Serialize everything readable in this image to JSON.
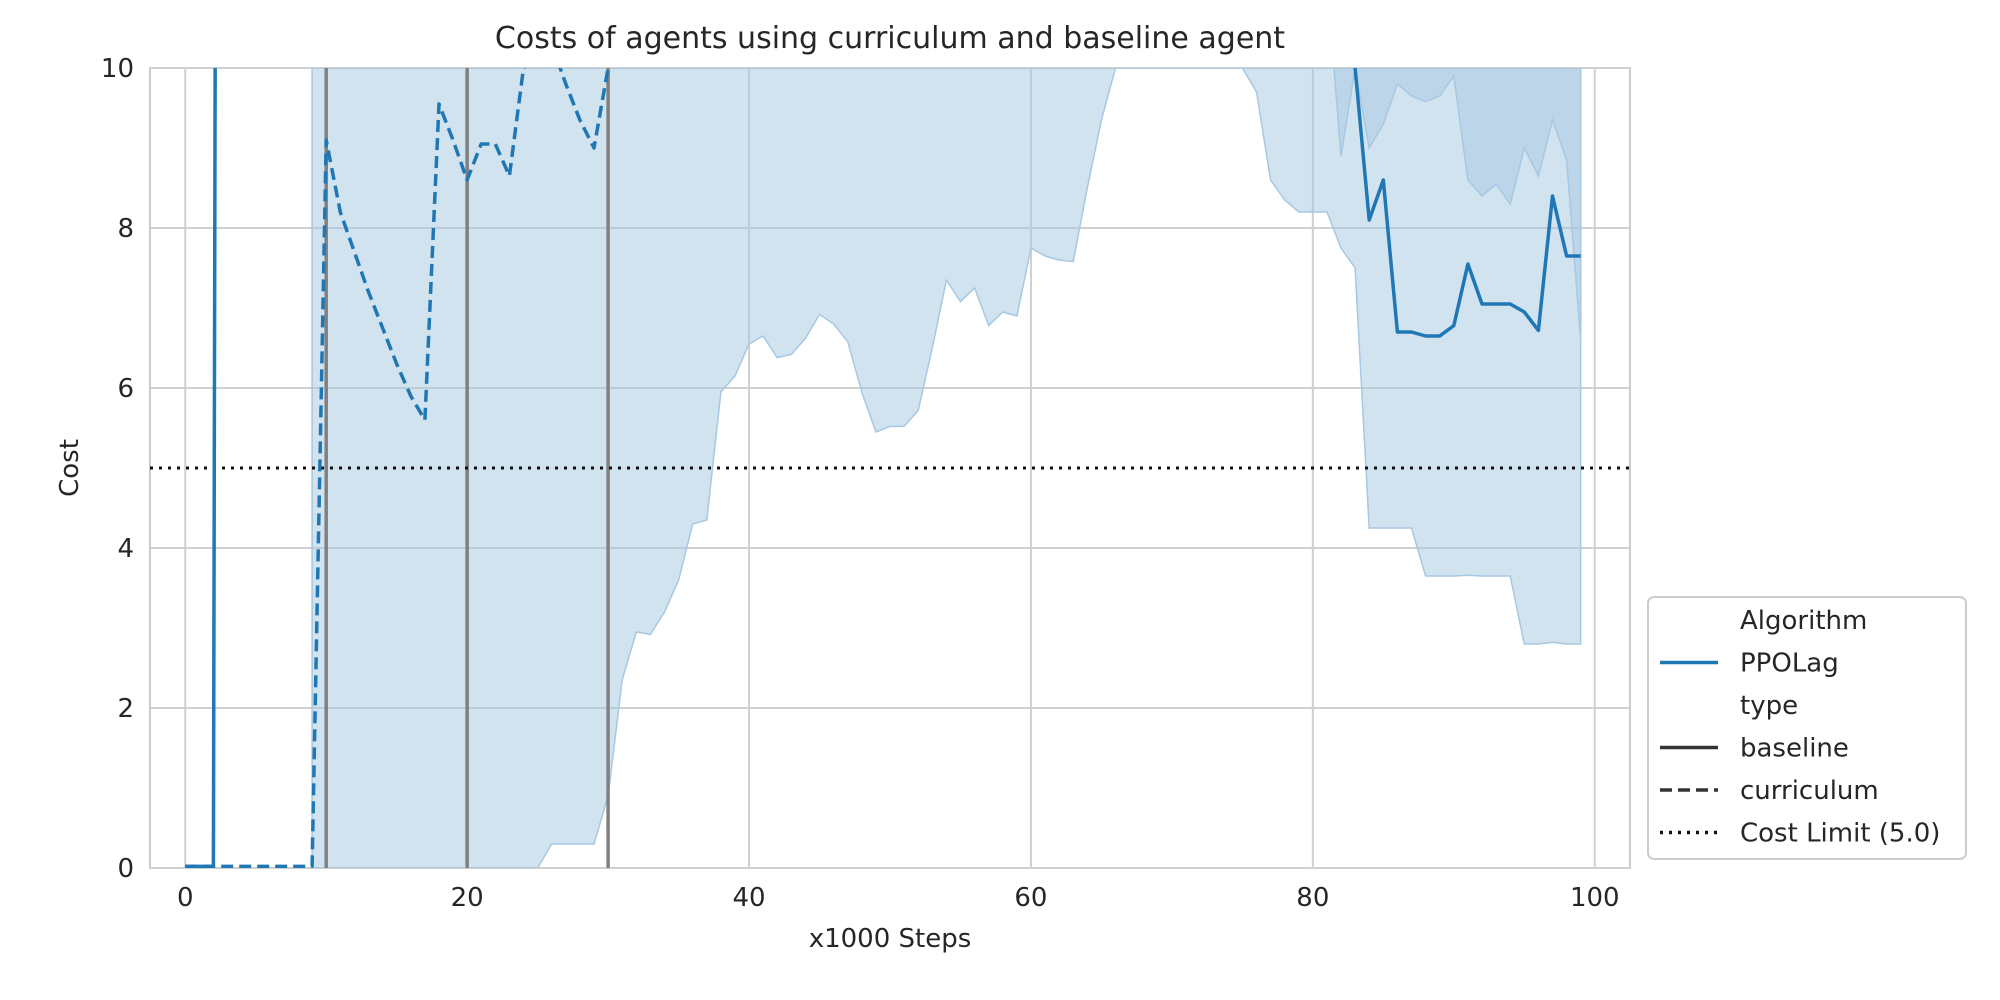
{
  "chart_data": {
    "type": "line",
    "title": "Costs of agents using curriculum and baseline agent",
    "xlabel": "x1000 Steps",
    "ylabel": "Cost",
    "xlim": [
      -2.5,
      102.5
    ],
    "ylim": [
      0,
      10
    ],
    "xticks": [
      0,
      20,
      40,
      60,
      80,
      100
    ],
    "yticks": [
      0,
      2,
      4,
      6,
      8,
      10
    ],
    "grid": true,
    "legend_position": "lower-right outside",
    "colors": {
      "series": "#1f77b4",
      "band": "#a6c8e2",
      "vline": "#808080",
      "limit": "#111111",
      "grid": "#d0d0d0"
    },
    "cost_limit": 5.0,
    "curriculum_vlines": [
      10,
      20,
      30
    ],
    "series": [
      {
        "algorithm": "PPOLag",
        "type": "baseline",
        "points": [
          [
            0,
            0.02
          ],
          [
            1,
            0.02
          ],
          [
            2,
            0.02
          ],
          [
            2.15,
            12
          ],
          [
            82,
            12
          ],
          [
            83,
            10
          ],
          [
            84,
            8.1
          ],
          [
            85,
            8.6
          ],
          [
            86,
            6.7
          ],
          [
            87,
            6.7
          ],
          [
            88,
            6.65
          ],
          [
            89,
            6.65
          ],
          [
            90,
            6.78
          ],
          [
            91,
            7.55
          ],
          [
            92,
            7.05
          ],
          [
            93,
            7.05
          ],
          [
            94,
            7.05
          ],
          [
            95,
            6.95
          ],
          [
            96,
            6.72
          ],
          [
            97,
            8.4
          ],
          [
            98,
            7.65
          ],
          [
            99,
            7.65
          ]
        ],
        "ci_band": {
          "x": [
            81.5,
            82,
            83,
            84,
            85,
            86,
            87,
            88,
            89,
            90,
            91,
            92,
            93,
            94,
            95,
            96,
            97,
            98,
            99
          ],
          "lower": [
            10,
            8.9,
            10,
            9.0,
            9.3,
            9.8,
            9.65,
            9.58,
            9.65,
            9.9,
            8.6,
            8.4,
            8.55,
            8.3,
            9.0,
            8.65,
            9.35,
            8.85,
            6.6
          ],
          "upper": [
            10,
            10,
            10,
            10,
            10,
            10,
            10,
            10,
            10,
            10,
            10,
            10,
            10,
            10,
            10,
            10,
            10,
            10,
            10
          ]
        }
      },
      {
        "algorithm": "PPOLag",
        "type": "curriculum",
        "points": [
          [
            0,
            0.02
          ],
          [
            2,
            0.02
          ],
          [
            4,
            0.02
          ],
          [
            6,
            0.02
          ],
          [
            8,
            0.02
          ],
          [
            9,
            0.02
          ],
          [
            10,
            9.1
          ],
          [
            11,
            8.2
          ],
          [
            12,
            7.7
          ],
          [
            13,
            7.2
          ],
          [
            14,
            6.75
          ],
          [
            15,
            6.3
          ],
          [
            16,
            5.9
          ],
          [
            17,
            5.6
          ],
          [
            18,
            9.55
          ],
          [
            19,
            9.1
          ],
          [
            20,
            8.6
          ],
          [
            21,
            9.05
          ],
          [
            22,
            9.05
          ],
          [
            23,
            8.65
          ],
          [
            24,
            10
          ],
          [
            26,
            10.3
          ],
          [
            27,
            9.8
          ],
          [
            28,
            9.35
          ],
          [
            29,
            9.0
          ],
          [
            30,
            10
          ],
          [
            31,
            11
          ]
        ],
        "ci_band": {
          "x": [
            9,
            10,
            11,
            12,
            13,
            14,
            15,
            16,
            17,
            18,
            19,
            20,
            21,
            22,
            23,
            24,
            25,
            26,
            27,
            28,
            29,
            30,
            31,
            32,
            33,
            34,
            35,
            36,
            37,
            38,
            39,
            40,
            41,
            42,
            43,
            44,
            45,
            46,
            47,
            48,
            49,
            50,
            51,
            52,
            53,
            54,
            55,
            56,
            57,
            58,
            59,
            60,
            61,
            62,
            63,
            64,
            65,
            66,
            67,
            68,
            69,
            70,
            71,
            72,
            73,
            74,
            75,
            76,
            77,
            78,
            79,
            80,
            81,
            82,
            83,
            84,
            85,
            86,
            87,
            88,
            89,
            90,
            91,
            92,
            93,
            94,
            95,
            96,
            97,
            98,
            99
          ],
          "lower": [
            0,
            0,
            0,
            0,
            0,
            0,
            0,
            0,
            0,
            0,
            0,
            0,
            0,
            0,
            0,
            0,
            0,
            0.3,
            0.3,
            0.3,
            0.3,
            0.9,
            2.35,
            2.95,
            2.92,
            3.2,
            3.6,
            4.3,
            4.35,
            5.95,
            6.15,
            6.55,
            6.65,
            6.38,
            6.42,
            6.62,
            6.92,
            6.8,
            6.58,
            5.95,
            5.45,
            5.52,
            5.52,
            5.72,
            6.5,
            7.35,
            7.08,
            7.25,
            6.78,
            6.95,
            6.9,
            7.75,
            7.65,
            7.6,
            7.58,
            8.5,
            9.35,
            10,
            10,
            10,
            10,
            10,
            10,
            10,
            10,
            10,
            10,
            9.7,
            8.6,
            8.35,
            8.2,
            8.2,
            8.2,
            7.75,
            7.5,
            4.25,
            4.25,
            4.25,
            4.25,
            3.65,
            3.65,
            3.65,
            3.66,
            3.65,
            3.65,
            3.65,
            2.8,
            2.8,
            2.82,
            2.8,
            2.8
          ],
          "upper": [
            10,
            10,
            10,
            10,
            10,
            10,
            10,
            10,
            10,
            10,
            10,
            10,
            10,
            10,
            10,
            10,
            10,
            10,
            10,
            10,
            10,
            10,
            10,
            10,
            10,
            10,
            10,
            10,
            10,
            10,
            10,
            10,
            10,
            10,
            10,
            10,
            10,
            10,
            10,
            10,
            10,
            10,
            10,
            10,
            10,
            10,
            10,
            10,
            10,
            10,
            10,
            10,
            10,
            10,
            10,
            10,
            10,
            10,
            10,
            10,
            10,
            10,
            10,
            10,
            10,
            10,
            10,
            10,
            10,
            10,
            10,
            10,
            10,
            10,
            10,
            10,
            10,
            10,
            10,
            10,
            10,
            10,
            10,
            10,
            10,
            10,
            10,
            10,
            10,
            10,
            10
          ]
        }
      }
    ],
    "legend": {
      "entries": [
        {
          "label": "Algorithm",
          "style": "header"
        },
        {
          "label": "PPOLag",
          "style": "solid-color"
        },
        {
          "label": "type",
          "style": "header"
        },
        {
          "label": "baseline",
          "style": "solid"
        },
        {
          "label": "curriculum",
          "style": "dashed"
        },
        {
          "label": "Cost Limit (5.0)",
          "style": "dotted"
        }
      ]
    }
  }
}
